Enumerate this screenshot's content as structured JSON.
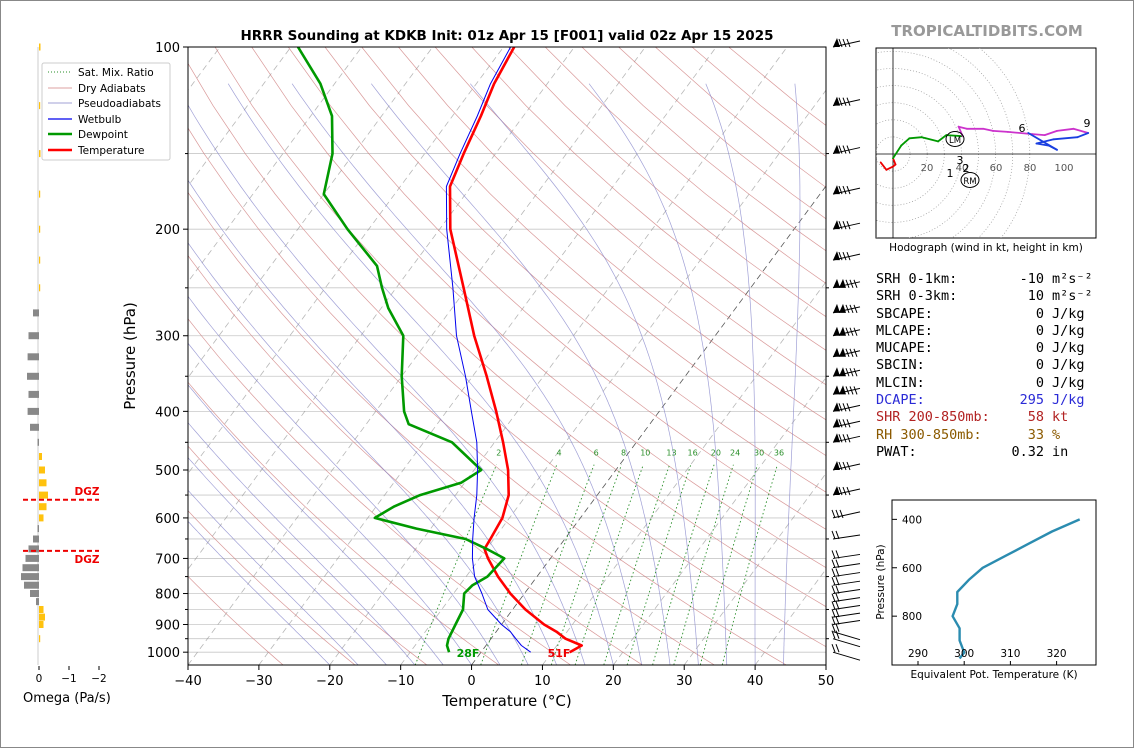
{
  "title": "HRRR Sounding at KDKB Init: 01z Apr 15 [F001] valid 02z Apr 15 2025",
  "watermark": "TROPICALTIDBITS.COM",
  "skewt": {
    "xlabel": "Temperature (°C)",
    "ylabel": "Pressure (hPa)",
    "x_ticks": [
      "−40",
      "−30",
      "−20",
      "−10",
      "0",
      "10",
      "20",
      "30",
      "40",
      "50"
    ],
    "y_ticks": [
      "100",
      "200",
      "300",
      "400",
      "500",
      "600",
      "700",
      "800",
      "900",
      "1000"
    ],
    "mixing_ratio_labels": [
      "2",
      "4",
      "6",
      "8",
      "10",
      "13",
      "16",
      "20",
      "24",
      "30",
      "36"
    ],
    "surface_temp_label": "51F",
    "surface_dew_label": "28F",
    "legend": [
      "Sat. Mix. Ratio",
      "Dry Adiabats",
      "Pseudoadiabats",
      "Wetbulb",
      "Dewpoint",
      "Temperature"
    ]
  },
  "omega": {
    "xlabel": "Omega (Pa/s)",
    "x_ticks": [
      "0",
      "−1",
      "−2"
    ],
    "dgz_label": "DGZ"
  },
  "hodograph": {
    "caption": "Hodograph (wind in kt, height in km)",
    "ring_labels": [
      "20",
      "40",
      "60",
      "80",
      "100"
    ],
    "height_labels": [
      "1",
      "2",
      "3",
      "6",
      "9"
    ],
    "lm_label": "LM",
    "rm_label": "RM"
  },
  "params": [
    {
      "label": "SRH 0-1km:",
      "value": "-10",
      "unit": "m²s⁻²",
      "color": "#000000"
    },
    {
      "label": "SRH 0-3km:",
      "value": "10",
      "unit": "m²s⁻²",
      "color": "#000000"
    },
    {
      "label": "SBCAPE:",
      "value": "0",
      "unit": "J/kg",
      "color": "#000000"
    },
    {
      "label": "MLCAPE:",
      "value": "0",
      "unit": "J/kg",
      "color": "#000000"
    },
    {
      "label": "MUCAPE:",
      "value": "0",
      "unit": "J/kg",
      "color": "#000000"
    },
    {
      "label": "SBCIN:",
      "value": "0",
      "unit": "J/kg",
      "color": "#000000"
    },
    {
      "label": "MLCIN:",
      "value": "0",
      "unit": "J/kg",
      "color": "#000000"
    },
    {
      "label": "DCAPE:",
      "value": "295",
      "unit": "J/kg",
      "color": "#2a2ad6"
    },
    {
      "label": "SHR 200-850mb:",
      "value": "58",
      "unit": "kt",
      "color": "#b22222"
    },
    {
      "label": "RH 300-850mb:",
      "value": "33",
      "unit": "%",
      "color": "#8b5a00"
    },
    {
      "label": "PWAT:",
      "value": "0.32",
      "unit": "in",
      "color": "#000000"
    }
  ],
  "theta_e": {
    "xlabel": "Equivalent Pot. Temperature (K)",
    "ylabel": "Pressure (hPa)",
    "x_ticks": [
      "290",
      "300",
      "310",
      "320"
    ],
    "y_ticks": [
      "400",
      "600",
      "800"
    ]
  },
  "chart_data": {
    "type": "line",
    "title": "HRRR Sounding at KDKB Init: 01z Apr 15 [F001] valid 02z Apr 15 2025",
    "xlabel": "Temperature (°C)",
    "ylabel": "Pressure (hPa)",
    "xlim": [
      -40,
      50
    ],
    "ylim": [
      1050,
      100
    ],
    "y_scale": "log",
    "series": [
      {
        "name": "Temperature",
        "color": "#ff0000",
        "points": [
          [
            1000,
            12.5
          ],
          [
            975,
            13.5
          ],
          [
            950,
            10.5
          ],
          [
            925,
            8.5
          ],
          [
            900,
            6.0
          ],
          [
            850,
            1.8
          ],
          [
            800,
            -2.0
          ],
          [
            750,
            -5.5
          ],
          [
            700,
            -8.8
          ],
          [
            675,
            -10.3
          ],
          [
            650,
            -10.5
          ],
          [
            600,
            -11.0
          ],
          [
            550,
            -12.5
          ],
          [
            500,
            -15.2
          ],
          [
            450,
            -18.8
          ],
          [
            400,
            -23.0
          ],
          [
            350,
            -28.0
          ],
          [
            300,
            -34.0
          ],
          [
            250,
            -40.5
          ],
          [
            200,
            -48.5
          ],
          [
            170,
            -53.0
          ],
          [
            150,
            -54.5
          ],
          [
            130,
            -56.0
          ],
          [
            115,
            -57.5
          ],
          [
            100,
            -58.5
          ]
        ]
      },
      {
        "name": "Dewpoint",
        "color": "#009900",
        "points": [
          [
            1000,
            -4.5
          ],
          [
            975,
            -5.5
          ],
          [
            950,
            -6.0
          ],
          [
            900,
            -6.5
          ],
          [
            850,
            -7.0
          ],
          [
            800,
            -8.5
          ],
          [
            775,
            -8.2
          ],
          [
            750,
            -7.0
          ],
          [
            700,
            -6.5
          ],
          [
            675,
            -10.0
          ],
          [
            650,
            -14.0
          ],
          [
            625,
            -22.0
          ],
          [
            600,
            -29.0
          ],
          [
            575,
            -27.5
          ],
          [
            550,
            -25.0
          ],
          [
            525,
            -20.5
          ],
          [
            500,
            -19.0
          ],
          [
            450,
            -26.0
          ],
          [
            420,
            -34.0
          ],
          [
            400,
            -36.0
          ],
          [
            350,
            -40.0
          ],
          [
            300,
            -44.0
          ],
          [
            270,
            -49.0
          ],
          [
            250,
            -52.0
          ],
          [
            230,
            -55.0
          ],
          [
            200,
            -63.0
          ],
          [
            175,
            -70.0
          ],
          [
            150,
            -73.0
          ],
          [
            130,
            -77.0
          ],
          [
            115,
            -82.0
          ],
          [
            100,
            -89.0
          ]
        ]
      },
      {
        "name": "Wetbulb",
        "color": "#0000ee",
        "points": [
          [
            1000,
            7.0
          ],
          [
            975,
            5.0
          ],
          [
            950,
            3.5
          ],
          [
            925,
            2.0
          ],
          [
            900,
            0.0
          ],
          [
            850,
            -3.5
          ],
          [
            800,
            -6.0
          ],
          [
            750,
            -8.8
          ],
          [
            700,
            -11.0
          ],
          [
            650,
            -13.0
          ],
          [
            600,
            -15.0
          ],
          [
            550,
            -17.0
          ],
          [
            500,
            -19.5
          ],
          [
            450,
            -22.5
          ],
          [
            400,
            -26.5
          ],
          [
            350,
            -31.0
          ],
          [
            300,
            -36.5
          ],
          [
            250,
            -42.0
          ],
          [
            200,
            -49.0
          ],
          [
            170,
            -53.5
          ],
          [
            150,
            -55.0
          ],
          [
            130,
            -56.5
          ],
          [
            115,
            -58.0
          ],
          [
            100,
            -59.0
          ]
        ]
      }
    ],
    "omega_pa_s": [
      {
        "p": 100,
        "v": 0.05
      },
      {
        "p": 125,
        "v": 0.04
      },
      {
        "p": 150,
        "v": 0.05
      },
      {
        "p": 175,
        "v": 0.04
      },
      {
        "p": 200,
        "v": 0.03
      },
      {
        "p": 225,
        "v": 0.03
      },
      {
        "p": 250,
        "v": 0.02
      },
      {
        "p": 275,
        "v": -0.2
      },
      {
        "p": 300,
        "v": -0.35
      },
      {
        "p": 325,
        "v": -0.38
      },
      {
        "p": 350,
        "v": -0.4
      },
      {
        "p": 375,
        "v": -0.35
      },
      {
        "p": 400,
        "v": -0.38
      },
      {
        "p": 425,
        "v": -0.3
      },
      {
        "p": 450,
        "v": -0.05
      },
      {
        "p": 475,
        "v": 0.1
      },
      {
        "p": 500,
        "v": 0.2
      },
      {
        "p": 525,
        "v": 0.25
      },
      {
        "p": 550,
        "v": 0.3
      },
      {
        "p": 575,
        "v": 0.25
      },
      {
        "p": 600,
        "v": 0.15
      },
      {
        "p": 625,
        "v": -0.05
      },
      {
        "p": 650,
        "v": -0.2
      },
      {
        "p": 675,
        "v": -0.35
      },
      {
        "p": 700,
        "v": -0.45
      },
      {
        "p": 725,
        "v": -0.55
      },
      {
        "p": 750,
        "v": -0.6
      },
      {
        "p": 775,
        "v": -0.5
      },
      {
        "p": 800,
        "v": -0.3
      },
      {
        "p": 825,
        "v": -0.1
      },
      {
        "p": 850,
        "v": 0.15
      },
      {
        "p": 875,
        "v": 0.2
      },
      {
        "p": 900,
        "v": 0.15
      },
      {
        "p": 950,
        "v": 0.02
      }
    ],
    "dgz_hpa": [
      560,
      680
    ],
    "hodograph_kt": [
      [
        -15,
        -8
      ],
      [
        -8,
        -15
      ],
      [
        0,
        -12
      ],
      [
        3,
        -10
      ],
      [
        0,
        -4
      ],
      [
        10,
        8
      ],
      [
        20,
        15
      ],
      [
        35,
        16
      ],
      [
        40,
        15
      ],
      [
        55,
        12
      ],
      [
        65,
        18
      ],
      [
        85,
        17
      ],
      [
        80,
        26
      ],
      [
        90,
        24
      ],
      [
        110,
        24
      ],
      [
        122,
        22
      ],
      [
        140,
        21
      ],
      [
        170,
        19
      ],
      [
        185,
        18
      ],
      [
        200,
        22
      ],
      [
        220,
        24
      ],
      [
        238,
        20
      ],
      [
        225,
        16
      ],
      [
        196,
        14
      ],
      [
        175,
        10
      ],
      [
        190,
        8
      ],
      [
        200,
        4
      ],
      [
        165,
        20
      ]
    ],
    "theta_e_profile_k": [
      [
        400,
        325
      ],
      [
        450,
        319
      ],
      [
        500,
        314
      ],
      [
        550,
        309
      ],
      [
        600,
        304
      ],
      [
        650,
        301
      ],
      [
        700,
        298.5
      ],
      [
        750,
        298.5
      ],
      [
        800,
        297.5
      ],
      [
        850,
        299
      ],
      [
        900,
        299
      ],
      [
        950,
        300
      ],
      [
        975,
        299
      ]
    ]
  }
}
